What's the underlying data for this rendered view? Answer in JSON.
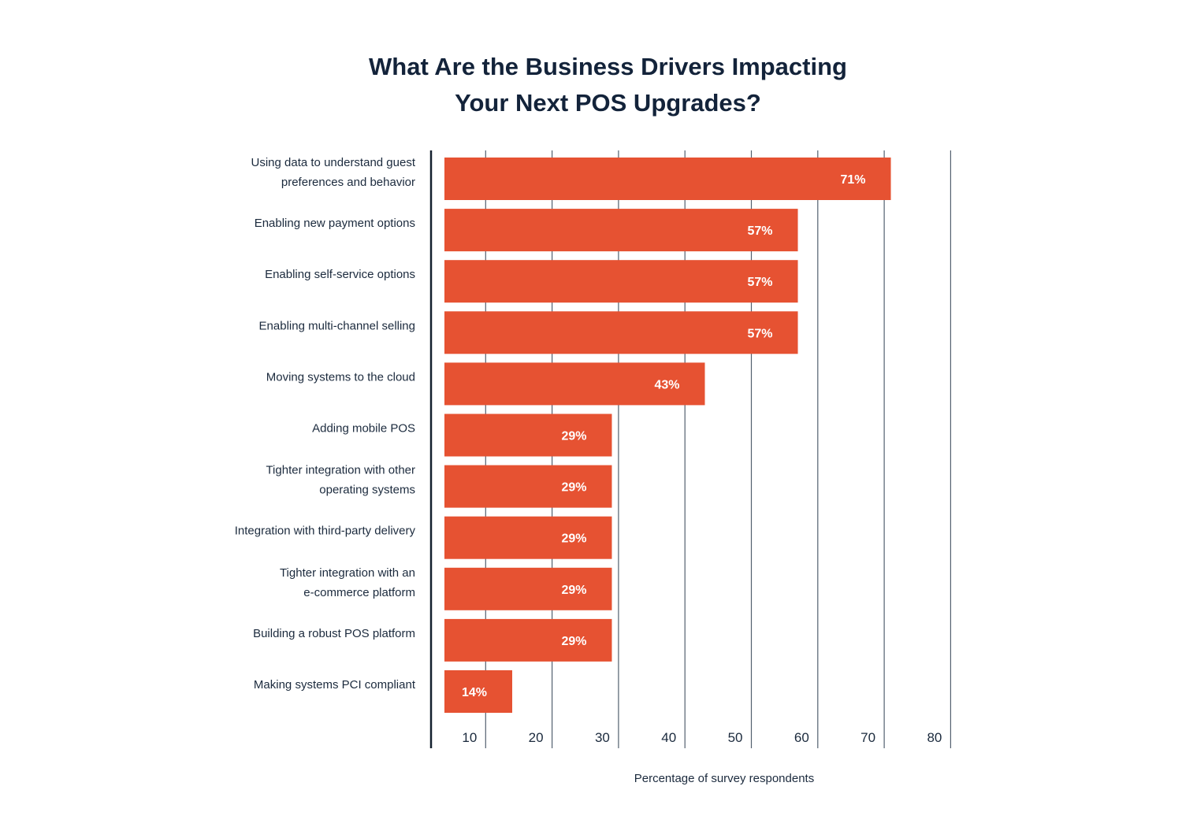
{
  "chart_data": {
    "type": "bar",
    "orientation": "horizontal",
    "title_lines": [
      "What Are the Business Drivers Impacting",
      "Your Next POS Upgrades?"
    ],
    "categories": [
      [
        "Using data to understand guest",
        "preferences and behavior"
      ],
      [
        "Enabling new payment options"
      ],
      [
        "Enabling self-service options"
      ],
      [
        "Enabling multi-channel selling"
      ],
      [
        "Moving systems to the cloud"
      ],
      [
        "Adding mobile POS"
      ],
      [
        "Tighter integration with other",
        "operating systems"
      ],
      [
        "Integration with third-party delivery"
      ],
      [
        "Tighter integration with an",
        "e-commerce platform"
      ],
      [
        "Building a robust POS platform"
      ],
      [
        "Making systems PCI compliant"
      ]
    ],
    "values": [
      71,
      57,
      57,
      57,
      43,
      29,
      29,
      29,
      29,
      29,
      14
    ],
    "data_labels": [
      "71%",
      "57%",
      "57%",
      "57%",
      "43%",
      "29%",
      "29%",
      "29%",
      "29%",
      "29%",
      "14%"
    ],
    "x_ticks": [
      "10",
      "20",
      "30",
      "40",
      "50",
      "60",
      "70",
      "80"
    ],
    "xlabel": "Percentage of survey respondents",
    "ylabel": "",
    "xlim": [
      0,
      80
    ],
    "grid": "vertical",
    "legend": "none",
    "colors": {
      "bar": "#e65232",
      "bar_label": "#ffffff",
      "grid": "#53606f",
      "axis": "#14202e",
      "text": "#1b2a3d"
    }
  }
}
